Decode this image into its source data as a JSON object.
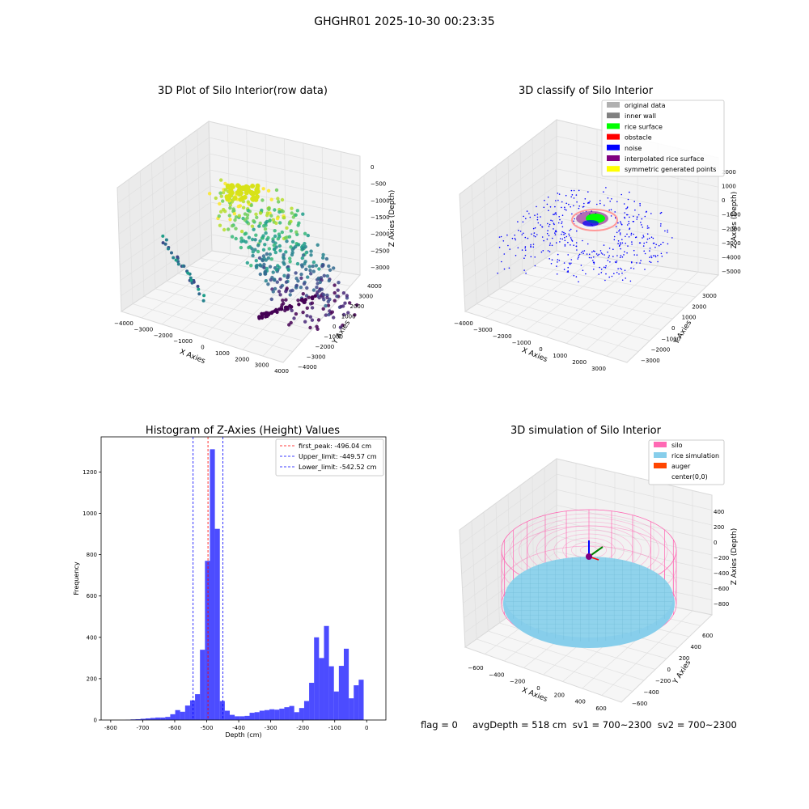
{
  "suptitle": "GHGHR01 2025-10-30 00:23:35",
  "status_line": "flag = 0     avgDepth = 518 cm  sv1 = 700~2300  sv2 = 700~2300",
  "chart_data": [
    {
      "type": "scatter",
      "projection": "3d",
      "title": "3D Plot of Silo Interior(row data)",
      "xlabel": "X Axies",
      "ylabel": "Y Axies",
      "zlabel": "Z Axies (Depth)",
      "xticks": [
        "−4000",
        "−3000",
        "−2000",
        "−1000",
        "0",
        "1000",
        "2000",
        "3000",
        "4000"
      ],
      "yticks": [
        "−4000",
        "−3000",
        "−2000",
        "−1000",
        "0",
        "1000",
        "2000",
        "3000",
        "4000"
      ],
      "zticks": [
        "0",
        "−500",
        "−1000",
        "−1500",
        "−2000",
        "−2500",
        "−3000"
      ],
      "colormap": "viridis",
      "grid": true
    },
    {
      "type": "scatter",
      "projection": "3d",
      "title": "3D classify of Silo Interior",
      "xlabel": "X Axies",
      "ylabel": "Y Axies",
      "zlabel": "Z Axies (Depth)",
      "xticks": [
        "−4000",
        "−3000",
        "−2000",
        "−1000",
        "0",
        "1000",
        "2000",
        "3000"
      ],
      "yticks": [
        "−3000",
        "−2000",
        "−1000",
        "0",
        "1000",
        "2000",
        "3000"
      ],
      "zticks": [
        "2000",
        "1000",
        "0",
        "−1000",
        "−2000",
        "−3000",
        "−4000",
        "−5000"
      ],
      "legend_position": "top-right",
      "legend": [
        {
          "label": "original data",
          "color": "#b0b0b0"
        },
        {
          "label": "inner wall",
          "color": "#808080"
        },
        {
          "label": "rice surface",
          "color": "#00ff00"
        },
        {
          "label": "obstacle",
          "color": "#ff0000"
        },
        {
          "label": "noise",
          "color": "#0000ff"
        },
        {
          "label": "interpolated rice surface",
          "color": "#800080"
        },
        {
          "label": "symmetric generated points",
          "color": "#ffff00"
        }
      ],
      "grid": true
    },
    {
      "type": "bar",
      "subtype": "histogram",
      "title": "Histogram of Z-Axies (Height) Values",
      "xlabel": "Depth (cm)",
      "ylabel": "Frequency",
      "xlim": [
        -830,
        60
      ],
      "ylim": [
        0,
        1370
      ],
      "xticks": [
        -800,
        -700,
        -600,
        -500,
        -400,
        -300,
        -200,
        -100,
        0
      ],
      "yticks": [
        0,
        200,
        400,
        600,
        800,
        1000,
        1200
      ],
      "bin_width": 15.5,
      "bar_color": "#0000ff",
      "bins": [
        [
          -800,
          0
        ],
        [
          -784.5,
          0
        ],
        [
          -769,
          0
        ],
        [
          -753.5,
          1
        ],
        [
          -738,
          3
        ],
        [
          -722.5,
          4
        ],
        [
          -707,
          6
        ],
        [
          -691.5,
          8
        ],
        [
          -676,
          10
        ],
        [
          -660.5,
          12
        ],
        [
          -645,
          12
        ],
        [
          -629.5,
          15
        ],
        [
          -614,
          28
        ],
        [
          -598.5,
          48
        ],
        [
          -583,
          40
        ],
        [
          -567.5,
          70
        ],
        [
          -552,
          95
        ],
        [
          -536.5,
          125
        ],
        [
          -521,
          340
        ],
        [
          -505.5,
          770
        ],
        [
          -490,
          1310
        ],
        [
          -474.5,
          925
        ],
        [
          -459,
          92
        ],
        [
          -443.5,
          45
        ],
        [
          -428,
          25
        ],
        [
          -412.5,
          18
        ],
        [
          -397,
          18
        ],
        [
          -381.5,
          20
        ],
        [
          -366,
          35
        ],
        [
          -350.5,
          38
        ],
        [
          -335,
          45
        ],
        [
          -319.5,
          48
        ],
        [
          -304,
          52
        ],
        [
          -288.5,
          50
        ],
        [
          -273,
          55
        ],
        [
          -257.5,
          62
        ],
        [
          -242,
          68
        ],
        [
          -226.5,
          38
        ],
        [
          -211,
          58
        ],
        [
          -195.5,
          92
        ],
        [
          -180,
          180
        ],
        [
          -164.5,
          400
        ],
        [
          -149,
          300
        ],
        [
          -133.5,
          455
        ],
        [
          -118,
          260
        ],
        [
          -102.5,
          138
        ],
        [
          -87,
          262
        ],
        [
          -71.5,
          345
        ],
        [
          -56,
          105
        ],
        [
          -40.5,
          168
        ],
        [
          -25,
          195
        ]
      ],
      "vlines": [
        {
          "label": "first_peak: -496.04 cm",
          "x": -496.04,
          "color": "#ff0000"
        },
        {
          "label": "Upper_limit: -449.57 cm",
          "x": -449.57,
          "color": "#0000ff"
        },
        {
          "label": "Lower_limit: -542.52 cm",
          "x": -542.52,
          "color": "#0000ff"
        }
      ],
      "legend_position": "top-right"
    },
    {
      "type": "scatter",
      "projection": "3d",
      "title": "3D simulation of Silo Interior",
      "xlabel": "X Axies",
      "ylabel": "Y Axies",
      "zlabel": "Z Axies (Depth)",
      "xticks": [
        "−600",
        "−400",
        "−200",
        "0",
        "200",
        "400",
        "600"
      ],
      "yticks": [
        "−600",
        "−400",
        "−200",
        "0",
        "200",
        "400",
        "600"
      ],
      "zticks": [
        "400",
        "200",
        "0",
        "−200",
        "−400",
        "−600",
        "−800"
      ],
      "legend_position": "top-right",
      "legend": [
        {
          "label": "silo",
          "color": "#ff69b4"
        },
        {
          "label": "rice simulation",
          "color": "#87ceeb"
        },
        {
          "label": "auger",
          "color": "#ff4500"
        },
        {
          "label": "center(0,0)",
          "color": "#ffffff"
        }
      ],
      "grid": true
    }
  ]
}
